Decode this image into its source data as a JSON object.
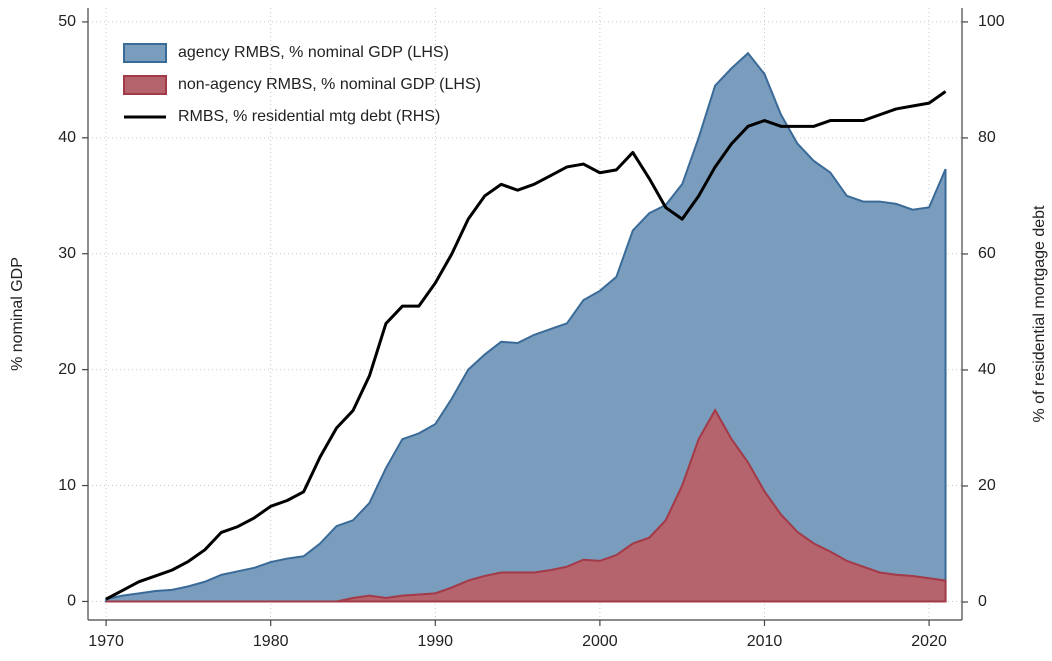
{
  "chart_data": {
    "type": "area",
    "x": [
      1970,
      1971,
      1972,
      1973,
      1974,
      1975,
      1976,
      1977,
      1978,
      1979,
      1980,
      1981,
      1982,
      1983,
      1984,
      1985,
      1986,
      1987,
      1988,
      1989,
      1990,
      1991,
      1992,
      1993,
      1994,
      1995,
      1996,
      1997,
      1998,
      1999,
      2000,
      2001,
      2002,
      2003,
      2004,
      2005,
      2006,
      2007,
      2008,
      2009,
      2010,
      2011,
      2012,
      2013,
      2014,
      2015,
      2016,
      2017,
      2018,
      2019,
      2020,
      2021
    ],
    "series": [
      {
        "name": "agency RMBS, % nominal GDP (LHS)",
        "type": "area",
        "color": "#7a9cbd",
        "edge": "#3a6b98",
        "values": [
          0.2,
          0.5,
          0.7,
          0.9,
          1.0,
          1.3,
          1.7,
          2.3,
          2.6,
          2.9,
          3.4,
          3.7,
          3.9,
          5.0,
          6.5,
          7.0,
          8.5,
          11.5,
          14.0,
          14.5,
          15.3,
          17.5,
          20.0,
          21.3,
          22.4,
          22.3,
          23.0,
          23.5,
          24.0,
          26.0,
          26.8,
          28.0,
          32.0,
          33.5,
          34.2,
          36.0,
          40.0,
          44.5,
          46.0,
          47.3,
          45.5,
          42.0,
          39.5,
          38.0,
          37.0,
          35.0,
          34.5,
          34.5,
          34.3,
          33.8,
          34.0,
          37.3
        ]
      },
      {
        "name": "non-agency RMBS, % nominal GDP (LHS)",
        "type": "area",
        "color": "#b5636d",
        "edge": "#a33a47",
        "values": [
          0,
          0,
          0,
          0,
          0,
          0,
          0,
          0,
          0,
          0,
          0,
          0,
          0,
          0,
          0,
          0.3,
          0.5,
          0.3,
          0.5,
          0.6,
          0.7,
          1.2,
          1.8,
          2.2,
          2.5,
          2.5,
          2.5,
          2.7,
          3.0,
          3.6,
          3.5,
          4.0,
          5.0,
          5.5,
          7.0,
          10.0,
          14.0,
          16.5,
          14.0,
          12.0,
          9.5,
          7.5,
          6.0,
          5.0,
          4.3,
          3.5,
          3.0,
          2.5,
          2.3,
          2.2,
          2.0,
          1.8
        ]
      },
      {
        "name": "RMBS, % residential mtg debt (RHS)",
        "type": "line",
        "axis": "y2",
        "color": "#000000",
        "values": [
          0.5,
          2,
          3.5,
          4.5,
          5.5,
          7,
          9,
          12,
          13,
          14.5,
          16.5,
          17.5,
          19,
          25,
          30,
          33,
          39,
          48,
          51,
          51,
          55,
          60,
          66,
          70,
          72,
          71,
          72,
          73.5,
          75,
          75.5,
          74,
          74.5,
          77.5,
          73,
          68,
          66,
          70,
          75,
          79,
          82,
          83,
          82,
          82,
          82,
          83,
          83,
          83,
          84,
          85,
          85.5,
          86,
          88
        ]
      }
    ],
    "ylabel": "% nominal GDP",
    "y2label": "% of residential mortgage debt",
    "xlim": [
      1968.9,
      2022.0
    ],
    "xticks": [
      1970,
      1980,
      1990,
      2000,
      2010,
      2020
    ],
    "ylim": [
      -1.6,
      51.2
    ],
    "yticks": [
      0,
      10,
      20,
      30,
      40,
      50
    ],
    "y2lim": [
      -3.1,
      102.4
    ],
    "y2ticks": [
      0,
      20,
      40,
      60,
      80,
      100
    ],
    "grid": true,
    "legend": "top-left"
  }
}
